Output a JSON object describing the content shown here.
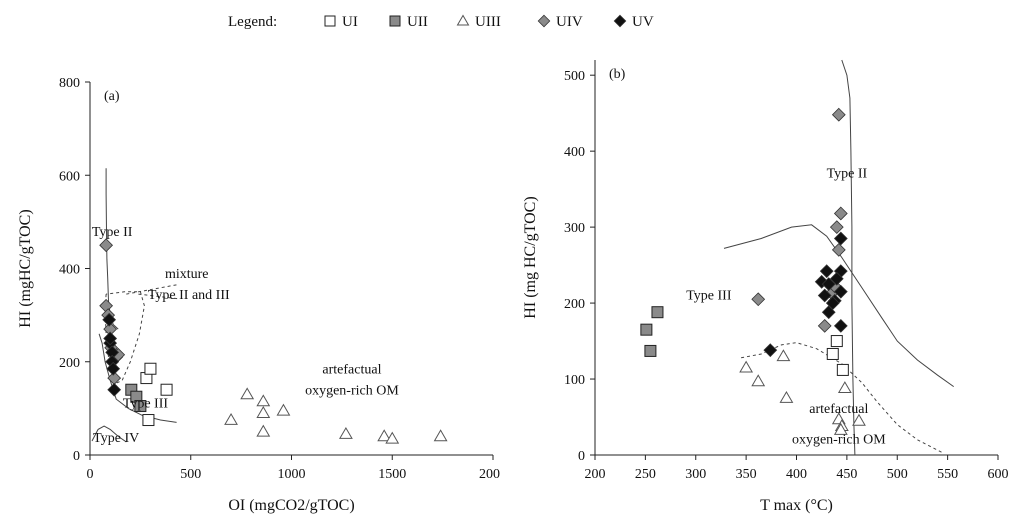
{
  "legend": {
    "title": "Legend:",
    "items": [
      {
        "id": "UI",
        "label": "UI",
        "marker": "square-open"
      },
      {
        "id": "UII",
        "label": "UII",
        "marker": "square-gray"
      },
      {
        "id": "UIII",
        "label": "UIII",
        "marker": "triangle-open"
      },
      {
        "id": "UIV",
        "label": "UIV",
        "marker": "diamond-gray"
      },
      {
        "id": "UV",
        "label": "UV",
        "marker": "diamond-black"
      }
    ]
  },
  "colors": {
    "gray_fill": "#8a8a8a",
    "black_fill": "#111111",
    "open_fill": "#ffffff",
    "stroke": "#222222"
  },
  "chart_data": [
    {
      "type": "scatter",
      "panel_label": "(a)",
      "xlabel": "OI (mgCO2/gTOC)",
      "ylabel": "HI (mgHC/gTOC)",
      "xlim": [
        0,
        2000
      ],
      "ylim": [
        0,
        800
      ],
      "xticks": [
        0,
        500,
        1000,
        1500,
        2000
      ],
      "yticks": [
        0,
        200,
        400,
        600,
        800
      ],
      "xtick_labels": [
        "0",
        "500",
        "1000",
        "1500",
        "2000"
      ],
      "ytick_labels": [
        "0",
        "200",
        "400",
        "600",
        "800"
      ],
      "series": [
        {
          "name": "UI",
          "marker": "square-open",
          "points": [
            [
              280,
              165
            ],
            [
              300,
              185
            ],
            [
              380,
              140
            ],
            [
              290,
              75
            ]
          ]
        },
        {
          "name": "UII",
          "marker": "square-gray",
          "points": [
            [
              205,
              140
            ],
            [
              230,
              125
            ],
            [
              250,
              105
            ]
          ]
        },
        {
          "name": "UIII",
          "marker": "triangle-open",
          "points": [
            [
              700,
              75
            ],
            [
              780,
              130
            ],
            [
              860,
              90
            ],
            [
              860,
              115
            ],
            [
              860,
              50
            ],
            [
              960,
              95
            ],
            [
              1270,
              45
            ],
            [
              1460,
              40
            ],
            [
              1500,
              35
            ],
            [
              1740,
              40
            ]
          ]
        },
        {
          "name": "UIV",
          "marker": "diamond-gray",
          "points": [
            [
              80,
              450
            ],
            [
              80,
              320
            ],
            [
              90,
              300
            ],
            [
              100,
              270
            ],
            [
              130,
              210
            ],
            [
              110,
              200
            ],
            [
              140,
              215
            ],
            [
              120,
              165
            ],
            [
              105,
              230
            ]
          ]
        },
        {
          "name": "UV",
          "marker": "diamond-black",
          "points": [
            [
              100,
              240
            ],
            [
              110,
              220
            ],
            [
              110,
              200
            ],
            [
              95,
              290
            ],
            [
              115,
              185
            ],
            [
              120,
              140
            ],
            [
              100,
              250
            ]
          ]
        }
      ],
      "annotations": [
        {
          "text": "Type II",
          "x": 110,
          "y": 470
        },
        {
          "text": "mixture",
          "x": 480,
          "y": 380
        },
        {
          "text": "Type II and III",
          "x": 490,
          "y": 335
        },
        {
          "text": "artefactual",
          "x": 1300,
          "y": 175
        },
        {
          "text": "oxygen-rich OM",
          "x": 1300,
          "y": 130
        },
        {
          "text": "Type III",
          "x": 275,
          "y": 102
        },
        {
          "text": "Type IV",
          "x": 130,
          "y": 28
        }
      ],
      "curves": [
        {
          "name": "type-ii-line",
          "dashed": false,
          "points": [
            [
              80,
              615
            ],
            [
              80,
              560
            ],
            [
              82,
              480
            ],
            [
              84,
              420
            ],
            [
              88,
              380
            ],
            [
              92,
              330
            ],
            [
              100,
              300
            ],
            [
              115,
              280
            ],
            [
              140,
              270
            ]
          ]
        },
        {
          "name": "type-iii-line",
          "dashed": false,
          "points": [
            [
              45,
              260
            ],
            [
              60,
              240
            ],
            [
              75,
              200
            ],
            [
              100,
              160
            ],
            [
              130,
              120
            ],
            [
              190,
              100
            ],
            [
              260,
              85
            ],
            [
              350,
              75
            ],
            [
              430,
              70
            ]
          ]
        },
        {
          "name": "type-iv-line",
          "dashed": false,
          "points": [
            [
              10,
              30
            ],
            [
              40,
              55
            ],
            [
              70,
              62
            ],
            [
              100,
              55
            ],
            [
              140,
              40
            ],
            [
              180,
              28
            ]
          ]
        },
        {
          "name": "mixture-ellipse",
          "dashed": true,
          "points": [
            [
              80,
              345
            ],
            [
              75,
              310
            ],
            [
              80,
              260
            ],
            [
              92,
              210
            ],
            [
              110,
              175
            ],
            [
              135,
              155
            ],
            [
              160,
              160
            ],
            [
              200,
              200
            ],
            [
              245,
              260
            ],
            [
              270,
              320
            ],
            [
              250,
              350
            ],
            [
              170,
              350
            ],
            [
              80,
              345
            ]
          ]
        },
        {
          "name": "mixture-leader-1",
          "dashed": true,
          "points": [
            [
              180,
              345
            ],
            [
              430,
              365
            ]
          ]
        },
        {
          "name": "mixture-leader-2",
          "dashed": true,
          "points": [
            [
              240,
              345
            ],
            [
              440,
              335
            ]
          ]
        }
      ]
    },
    {
      "type": "scatter",
      "panel_label": "(b)",
      "xlabel": "T max (°C)",
      "ylabel": "HI (mg HC/gTOC)",
      "xlim": [
        200,
        600
      ],
      "ylim": [
        0,
        520
      ],
      "xticks": [
        200,
        250,
        300,
        350,
        400,
        450,
        500,
        550,
        600
      ],
      "yticks": [
        0,
        100,
        200,
        300,
        400,
        500
      ],
      "xtick_labels": [
        "200",
        "250",
        "300",
        "350",
        "400",
        "450",
        "500",
        "550",
        "600"
      ],
      "ytick_labels": [
        "0",
        "100",
        "200",
        "300",
        "400",
        "500"
      ],
      "series": [
        {
          "name": "UI",
          "marker": "square-open",
          "points": [
            [
              436,
              133
            ],
            [
              440,
              150
            ],
            [
              446,
              112
            ]
          ]
        },
        {
          "name": "UII",
          "marker": "square-gray",
          "points": [
            [
              262,
              188
            ],
            [
              251,
              165
            ],
            [
              255,
              137
            ]
          ]
        },
        {
          "name": "UIII",
          "marker": "triangle-open",
          "points": [
            [
              350,
              115
            ],
            [
              362,
              97
            ],
            [
              387,
              130
            ],
            [
              390,
              75
            ],
            [
              442,
              47
            ],
            [
              445,
              38
            ],
            [
              448,
              88
            ],
            [
              462,
              45
            ],
            [
              444,
              33
            ]
          ]
        },
        {
          "name": "UIV",
          "marker": "diamond-gray",
          "points": [
            [
              442,
              448
            ],
            [
              444,
              318
            ],
            [
              440,
              300
            ],
            [
              442,
              270
            ],
            [
              362,
              205
            ],
            [
              428,
              170
            ],
            [
              435,
              213
            ],
            [
              438,
              222
            ]
          ]
        },
        {
          "name": "UV",
          "marker": "diamond-black",
          "points": [
            [
              374,
              138
            ],
            [
              444,
              285
            ],
            [
              430,
              242
            ],
            [
              444,
              242
            ],
            [
              425,
              228
            ],
            [
              432,
              225
            ],
            [
              428,
              210
            ],
            [
              438,
              203
            ],
            [
              444,
              215
            ],
            [
              440,
              232
            ],
            [
              432,
              188
            ],
            [
              444,
              170
            ],
            [
              436,
              200
            ]
          ]
        }
      ],
      "annotations": [
        {
          "text": "Type II",
          "x": 450,
          "y": 365
        },
        {
          "text": "Type III",
          "x": 313,
          "y": 205
        },
        {
          "text": "artefactual",
          "x": 442,
          "y": 55
        },
        {
          "text": "oxygen-rich OM",
          "x": 442,
          "y": 15
        }
      ],
      "curves": [
        {
          "name": "type-ii-boundary",
          "dashed": false,
          "points": [
            [
              445,
              520
            ],
            [
              450,
              500
            ],
            [
              453,
              470
            ],
            [
              454,
              400
            ],
            [
              455,
              300
            ],
            [
              455,
              200
            ],
            [
              456,
              100
            ],
            [
              457,
              40
            ],
            [
              458,
              0
            ]
          ]
        },
        {
          "name": "type-iii-boundary",
          "dashed": false,
          "points": [
            [
              328,
              272
            ],
            [
              365,
              285
            ],
            [
              395,
              300
            ],
            [
              415,
              303
            ],
            [
              430,
              288
            ],
            [
              445,
              260
            ],
            [
              465,
              220
            ],
            [
              485,
              180
            ],
            [
              500,
              150
            ],
            [
              520,
              125
            ],
            [
              540,
              105
            ],
            [
              556,
              90
            ]
          ]
        },
        {
          "name": "type-iv-boundary",
          "dashed": true,
          "points": [
            [
              345,
              128
            ],
            [
              365,
              133
            ],
            [
              385,
              145
            ],
            [
              400,
              148
            ],
            [
              420,
              140
            ],
            [
              445,
              120
            ],
            [
              465,
              95
            ],
            [
              480,
              70
            ],
            [
              500,
              40
            ],
            [
              520,
              20
            ],
            [
              545,
              3
            ]
          ]
        }
      ]
    }
  ]
}
